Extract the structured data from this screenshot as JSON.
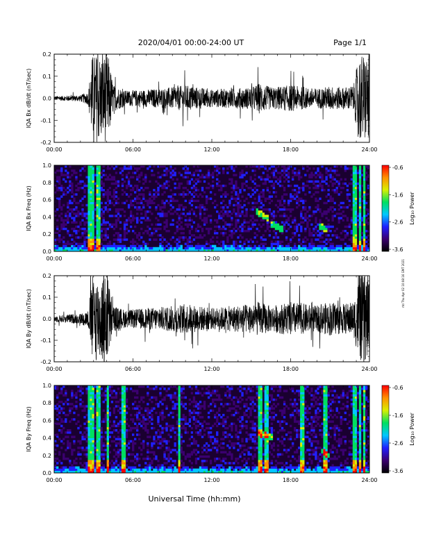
{
  "header": {
    "title": "2020/04/01  00:00-24:00 UT",
    "page": "Page 1/1"
  },
  "side_note": "rtd Thu Apr 02 10:08:16 GMT 2021",
  "xlabel": "Universal Time (hh:mm)",
  "colorbar_label": "Log₁₀ Power",
  "colorbar_ticks": [
    "-0.6",
    "-1.6",
    "-2.6",
    "-3.6"
  ],
  "colorbar_colors": [
    "#000000",
    "#3b0070",
    "#2020ff",
    "#00c8ff",
    "#00e060",
    "#d8f000",
    "#ff9000",
    "#ff0000"
  ],
  "chart_data": [
    {
      "type": "line",
      "ylabel": "IQA Bx dB/dt (nT/sec)",
      "xlim": [
        0,
        24
      ],
      "ylim": [
        -0.2,
        0.2
      ],
      "x_ticks": [
        "00:00",
        "06:00",
        "12:00",
        "18:00",
        "24:00"
      ],
      "y_ticks": [
        "0.2",
        "0.1",
        "0.0",
        "-0.1",
        "-0.2"
      ],
      "envelope": {
        "hours": [
          0.0,
          1.0,
          2.0,
          2.6,
          2.9,
          3.5,
          4.1,
          4.5,
          5.5,
          7.0,
          9.0,
          10.0,
          11.0,
          12.0,
          13.5,
          15.0,
          15.6,
          16.5,
          18.0,
          19.0,
          20.0,
          21.0,
          22.0,
          22.8,
          23.2,
          23.6,
          24.0
        ],
        "amplitude": [
          0.01,
          0.012,
          0.015,
          0.03,
          0.2,
          0.2,
          0.2,
          0.06,
          0.035,
          0.04,
          0.05,
          0.06,
          0.05,
          0.04,
          0.045,
          0.05,
          0.07,
          0.05,
          0.06,
          0.05,
          0.045,
          0.055,
          0.05,
          0.06,
          0.2,
          0.2,
          0.2
        ]
      }
    },
    {
      "type": "heatmap",
      "ylabel": "IQA Bx Freq (Hz)",
      "xlim": [
        0,
        24
      ],
      "ylim": [
        0.0,
        1.0
      ],
      "x_ticks": [
        "00:00",
        "06:00",
        "12:00",
        "18:00",
        "24:00"
      ],
      "y_ticks": [
        "1.0",
        "0.8",
        "0.6",
        "0.4",
        "0.2",
        "0.0"
      ],
      "colorbar_range": [
        -3.6,
        -0.6
      ],
      "bursts_hours": [
        2.7,
        2.85,
        3.4,
        22.9,
        23.3,
        23.6
      ],
      "features": [
        {
          "hour_start": 15.3,
          "hour_end": 16.3,
          "freq_start": 0.47,
          "freq_end": 0.38
        },
        {
          "hour_start": 16.5,
          "hour_end": 17.5,
          "freq_start": 0.32,
          "freq_end": 0.25
        },
        {
          "hour_start": 20.2,
          "hour_end": 20.8,
          "freq_start": 0.3,
          "freq_end": 0.24
        }
      ]
    },
    {
      "type": "line",
      "ylabel": "IQA By dB/dt (nT/sec)",
      "xlim": [
        0,
        24
      ],
      "ylim": [
        -0.2,
        0.2
      ],
      "x_ticks": [
        "00:00",
        "06:00",
        "12:00",
        "18:00",
        "24:00"
      ],
      "y_ticks": [
        "0.2",
        "0.1",
        "0.0",
        "-0.1",
        "-0.2"
      ],
      "envelope": {
        "hours": [
          0.0,
          1.0,
          2.0,
          2.6,
          2.9,
          3.5,
          4.1,
          4.5,
          5.5,
          7.0,
          9.0,
          10.0,
          11.0,
          12.0,
          13.5,
          15.0,
          15.6,
          16.5,
          18.0,
          19.0,
          20.0,
          21.0,
          22.0,
          22.8,
          23.2,
          23.6,
          24.0
        ],
        "amplitude": [
          0.015,
          0.02,
          0.025,
          0.04,
          0.2,
          0.2,
          0.2,
          0.06,
          0.04,
          0.05,
          0.06,
          0.07,
          0.06,
          0.05,
          0.06,
          0.07,
          0.08,
          0.06,
          0.08,
          0.07,
          0.06,
          0.08,
          0.07,
          0.08,
          0.2,
          0.2,
          0.2
        ]
      }
    },
    {
      "type": "heatmap",
      "ylabel": "IQA By Freq (Hz)",
      "xlim": [
        0,
        24
      ],
      "ylim": [
        0.0,
        1.0
      ],
      "x_ticks": [
        "00:00",
        "06:00",
        "12:00",
        "18:00",
        "24:00"
      ],
      "y_ticks": [
        "1.0",
        "0.8",
        "0.6",
        "0.4",
        "0.2",
        "0.0"
      ],
      "colorbar_range": [
        -3.6,
        -0.6
      ],
      "bursts_hours": [
        2.7,
        2.85,
        3.4,
        4.1,
        5.3,
        9.5,
        15.7,
        16.2,
        18.9,
        20.6,
        22.9,
        23.3,
        23.6
      ],
      "features": [
        {
          "hour_start": 15.5,
          "hour_end": 16.7,
          "freq_start": 0.46,
          "freq_end": 0.4
        },
        {
          "hour_start": 20.3,
          "hour_end": 20.9,
          "freq_start": 0.26,
          "freq_end": 0.2
        }
      ]
    }
  ]
}
